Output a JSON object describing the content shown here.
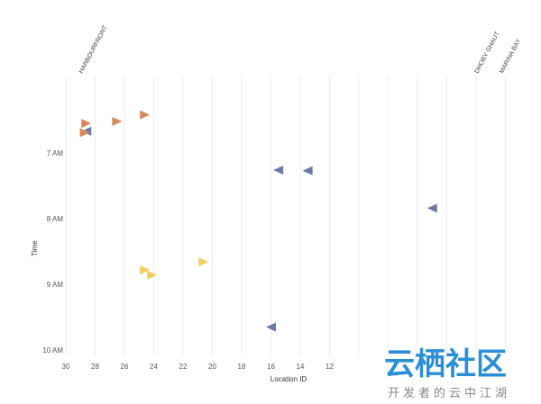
{
  "chart_data": {
    "type": "scatter",
    "xlabel": "Location ID",
    "ylabel": "Time",
    "x_ticks": [
      30,
      28,
      26,
      24,
      22,
      20,
      18,
      16,
      14,
      12
    ],
    "y_ticks": [
      {
        "label": "7 AM",
        "hour": 7
      },
      {
        "label": "8 AM",
        "hour": 8
      },
      {
        "label": "9 AM",
        "hour": 9
      },
      {
        "label": "10 AM",
        "hour": 10
      }
    ],
    "xlim": [
      30.1,
      0
    ],
    "ylim_hours": [
      6.05,
      10
    ],
    "x_axis_reversed": true,
    "grid": true,
    "station_labels": [
      {
        "text": "HARBOURFRONT",
        "x": 29
      },
      {
        "text": "DHOBY GHAUT",
        "x": 2
      },
      {
        "text": "MARINA BAY",
        "x": 0.3
      }
    ],
    "points": [
      {
        "x": 28.6,
        "hour": 6.55,
        "direction": "right",
        "color": "#d9895c"
      },
      {
        "x": 28.6,
        "hour": 6.67,
        "direction": "left",
        "color": "#6c7aa6"
      },
      {
        "x": 28.7,
        "hour": 6.69,
        "direction": "right",
        "color": "#d9895c"
      },
      {
        "x": 26.5,
        "hour": 6.52,
        "direction": "right",
        "color": "#d9895c"
      },
      {
        "x": 24.6,
        "hour": 6.42,
        "direction": "right",
        "color": "#d9895c"
      },
      {
        "x": 15.5,
        "hour": 7.26,
        "direction": "left",
        "color": "#6c7aa6"
      },
      {
        "x": 13.5,
        "hour": 7.27,
        "direction": "left",
        "color": "#6c7aa6"
      },
      {
        "x": 5.0,
        "hour": 7.84,
        "direction": "left",
        "color": "#6c7aa6"
      },
      {
        "x": 24.6,
        "hour": 8.78,
        "direction": "right",
        "color": "#f0d060"
      },
      {
        "x": 24.1,
        "hour": 8.86,
        "direction": "right",
        "color": "#f0d060"
      },
      {
        "x": 20.6,
        "hour": 8.66,
        "direction": "right",
        "color": "#f0d060"
      },
      {
        "x": 16.0,
        "hour": 9.65,
        "direction": "left",
        "color": "#6c7aa6"
      }
    ]
  },
  "watermark": {
    "main": "云栖社区",
    "sub": "开发者的云中江湖",
    "color": "#2a8fd6"
  }
}
